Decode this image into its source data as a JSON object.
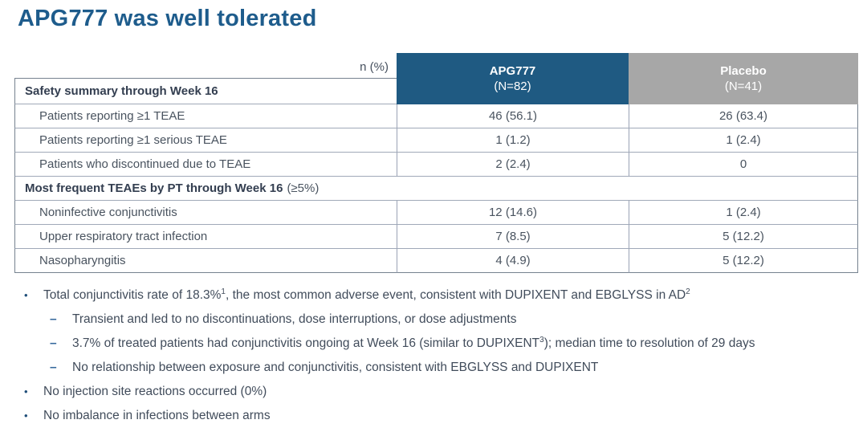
{
  "title": "APG777 was well tolerated",
  "colors": {
    "title_blue": "#1e5c8c",
    "header_blue": "#1f5a82",
    "placebo_gray": "#a7a7a7",
    "body_text": "#49535f"
  },
  "glyphs": {
    "bullet": "•",
    "dash": "–"
  },
  "table": {
    "corner_label": "n (%)",
    "columns": [
      {
        "name": "APG777",
        "n": "(N=82)"
      },
      {
        "name": "Placebo",
        "n": "(N=41)"
      }
    ],
    "section1_label": "Safety summary through Week 16",
    "rows1": [
      {
        "label": "Patients reporting ≥1 TEAE",
        "apg777": "46 (56.1)",
        "placebo": "26 (63.4)"
      },
      {
        "label": "Patients reporting ≥1 serious TEAE",
        "apg777": "1 (1.2)",
        "placebo": "1 (2.4)"
      },
      {
        "label": "Patients who discontinued due to TEAE",
        "apg777": "2 (2.4)",
        "placebo": "0"
      }
    ],
    "section2_label_bold": "Most frequent TEAEs by PT through Week 16",
    "section2_label_normal": "(≥5%)",
    "rows2": [
      {
        "label": "Noninfective conjunctivitis",
        "apg777": "12 (14.6)",
        "placebo": "1 (2.4)"
      },
      {
        "label": "Upper respiratory tract infection",
        "apg777": "7 (8.5)",
        "placebo": "5 (12.2)"
      },
      {
        "label": "Nasopharyngitis",
        "apg777": "4 (4.9)",
        "placebo": "5 (12.2)"
      }
    ]
  },
  "bullets": {
    "b1": {
      "pre": "Total conjunctivitis rate of 18.3%",
      "sup1": "1",
      "mid": ", the most common adverse event, consistent with DUPIXENT and EBGLYSS in AD",
      "sup2": "2"
    },
    "b1_sub1": "Transient and led to no discontinuations, dose interruptions, or dose adjustments",
    "b1_sub2": {
      "pre": "3.7% of treated patients had conjunctivitis ongoing at Week 16 (similar to DUPIXENT",
      "sup": "3",
      "post": "); median time to resolution of 29 days"
    },
    "b1_sub3": "No relationship between exposure and conjunctivitis, consistent with EBGLYSS and DUPIXENT",
    "b2": "No injection site reactions occurred (0%)",
    "b3": "No imbalance in infections between arms"
  }
}
